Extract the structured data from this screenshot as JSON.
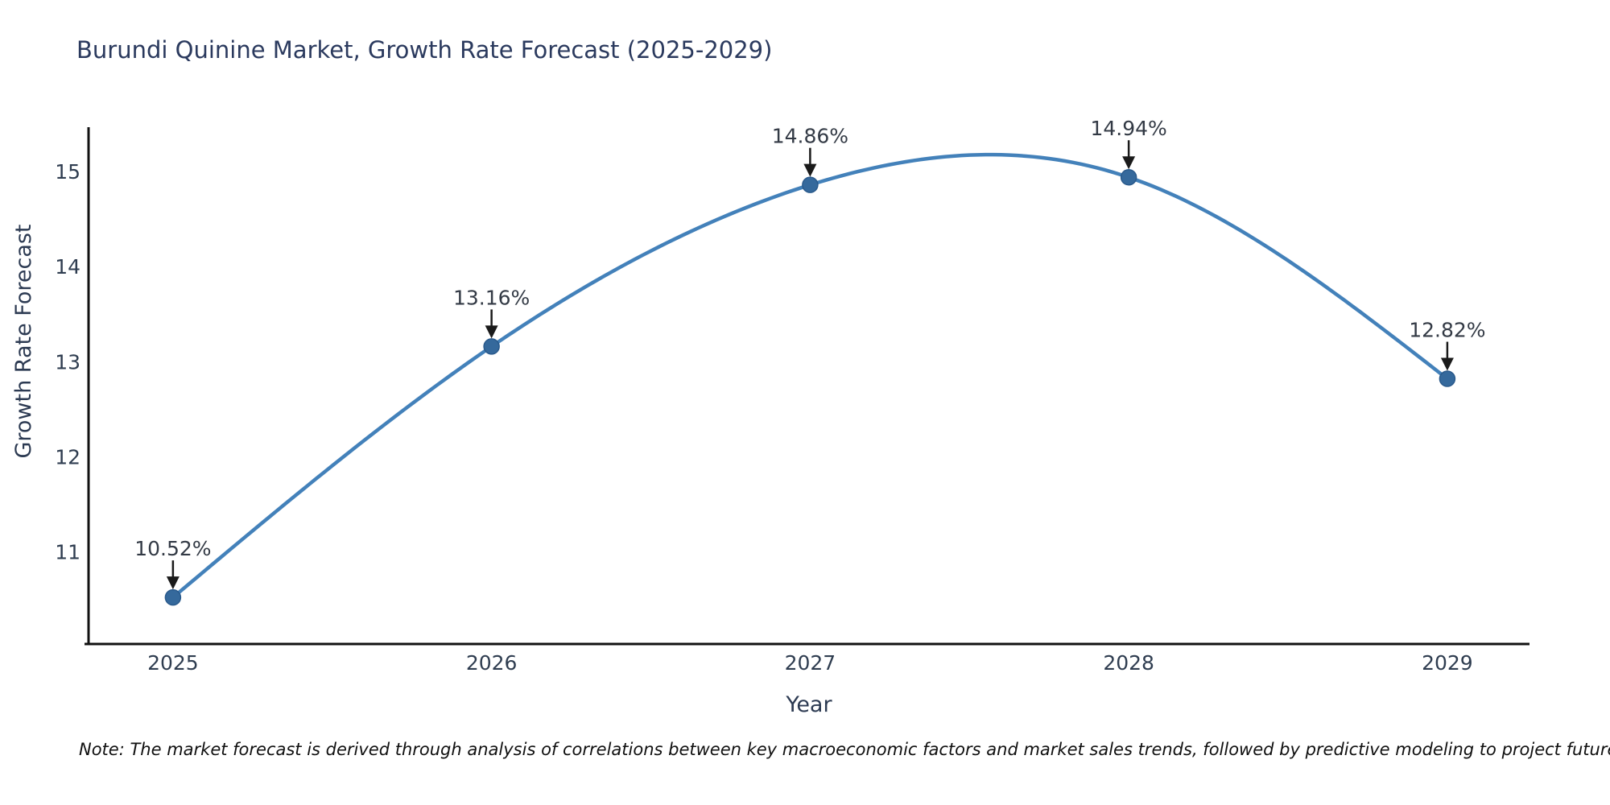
{
  "title": "Burundi Quinine Market, Growth Rate Forecast (2025-2029)",
  "footnote": "Note: The market forecast is derived through analysis of correlations between key macroeconomic factors and market sales trends, followed by predictive modeling to project future sales",
  "chart_data": {
    "type": "line",
    "title": "Burundi Quinine Market, Growth Rate Forecast (2025-2029)",
    "xlabel": "Year",
    "ylabel": "Growth Rate Forecast",
    "x": [
      2025,
      2026,
      2027,
      2028,
      2029
    ],
    "y": [
      10.52,
      13.16,
      14.86,
      14.94,
      12.82
    ],
    "point_labels": [
      "10.52%",
      "13.16%",
      "14.86%",
      "14.94%",
      "12.82%"
    ],
    "xticks": [
      2025,
      2026,
      2027,
      2028,
      2029
    ],
    "xtick_labels": [
      "2025",
      "2026",
      "2027",
      "2028",
      "2029"
    ],
    "yticks": [
      11,
      12,
      13,
      14,
      15
    ],
    "ytick_labels": [
      "11",
      "12",
      "13",
      "14",
      "15"
    ],
    "xlim": [
      2024.735,
      2029.258
    ],
    "ylim": [
      10.03,
      15.45
    ],
    "grid": false,
    "legend": "none",
    "line_shape": "spline",
    "colors": {
      "line": "#4381ba",
      "marker": "#35699c",
      "marker_edge": "#2a5a8c",
      "arrow": "#1a1a1a",
      "spine": "#111111",
      "background": "#ffffff"
    }
  }
}
